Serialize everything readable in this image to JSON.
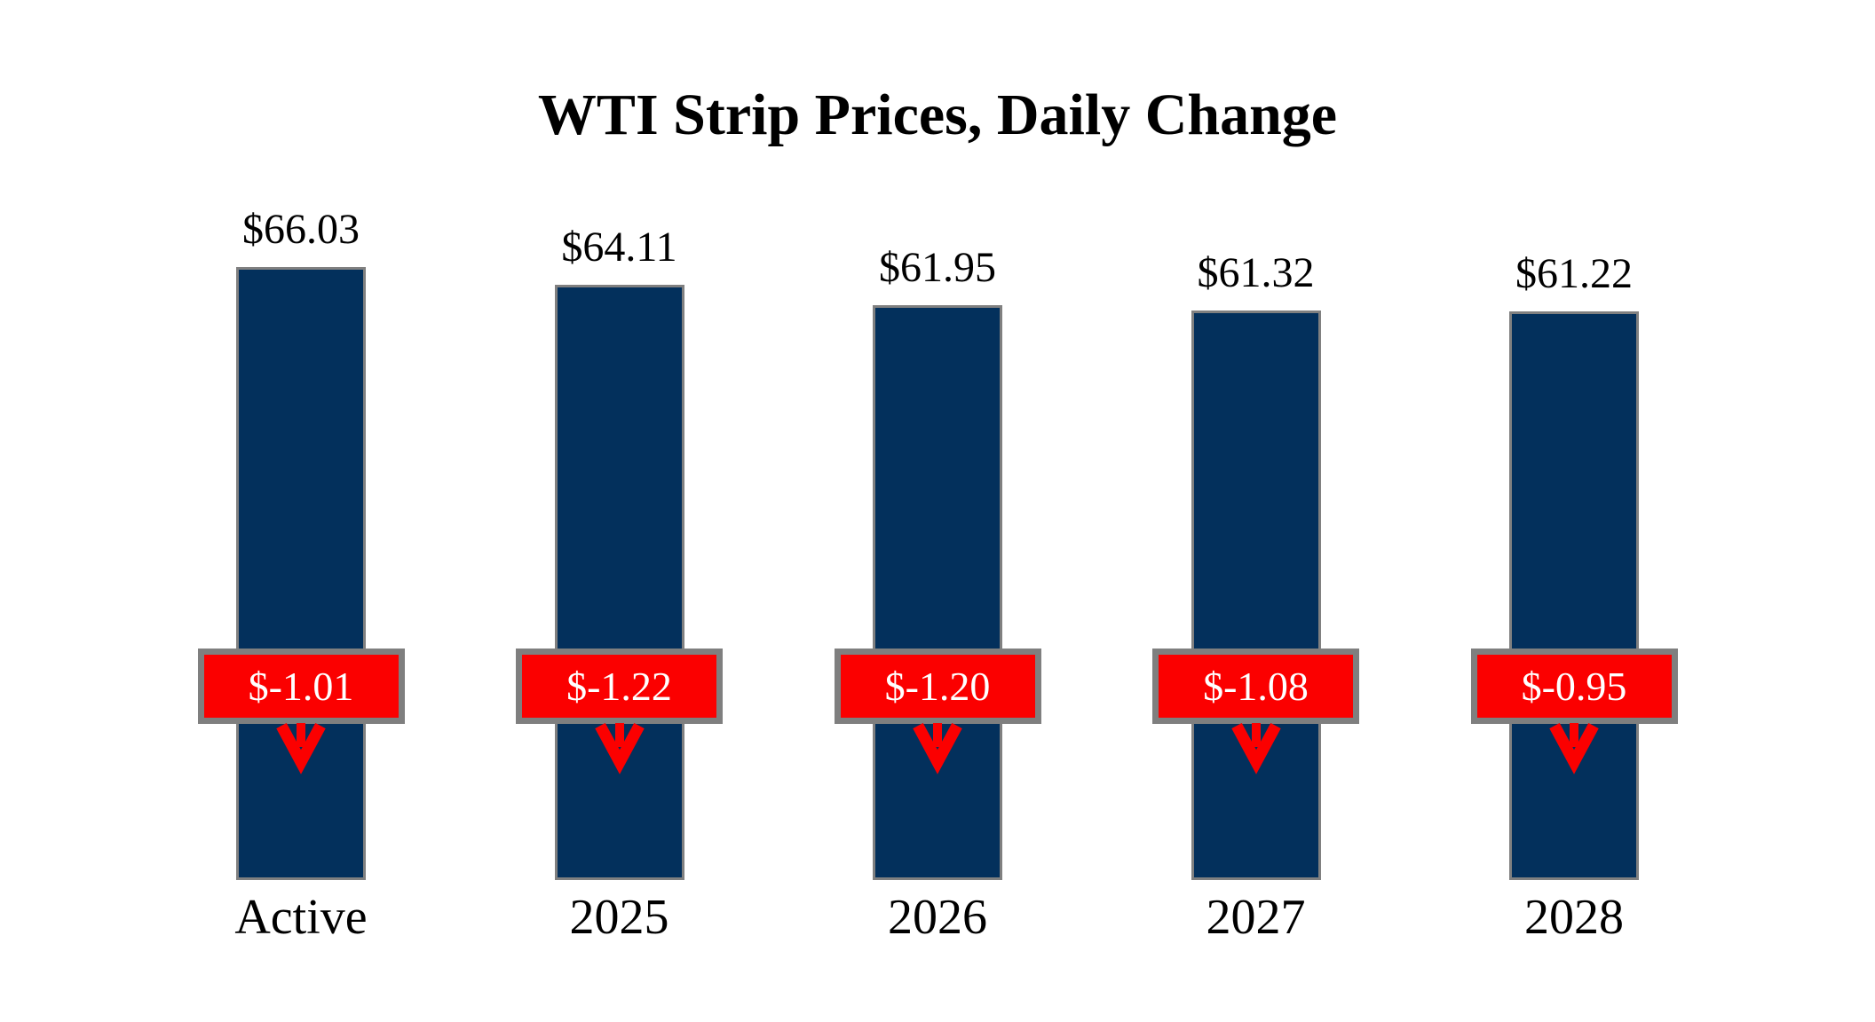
{
  "title": "WTI Strip Prices, Daily Change",
  "chart_data": {
    "type": "bar",
    "title": "WTI Strip Prices, Daily Change",
    "categories": [
      "Active",
      "2025",
      "2026",
      "2027",
      "2028"
    ],
    "series": [
      {
        "name": "WTI strip price",
        "values": [
          66.03,
          64.11,
          61.95,
          61.32,
          61.22
        ],
        "labels": [
          "$66.03",
          "$64.11",
          "$61.95",
          "$61.32",
          "$61.22"
        ]
      },
      {
        "name": "Daily change",
        "values": [
          -1.01,
          -1.22,
          -1.2,
          -1.08,
          -0.95
        ],
        "labels": [
          "$-1.01",
          "$-1.22",
          "$-1.20",
          "$-1.08",
          "$-0.95"
        ]
      }
    ],
    "ylim": [
      0,
      66.03
    ],
    "xlabel": "",
    "ylabel": "",
    "axes_visible": false,
    "grid": false,
    "legend_position": "none",
    "annotations": "red boxes with white daily-change values and red down arrows overlap each bar",
    "colors": {
      "bar_fill": "#03305C",
      "bar_border": "#808080",
      "change_box_fill": "#FB0000",
      "change_box_border": "#7F7F7F",
      "change_text": "#FFFFFF",
      "arrow": "#FB0000",
      "text": "#000000",
      "background": "#FFFFFF"
    }
  }
}
